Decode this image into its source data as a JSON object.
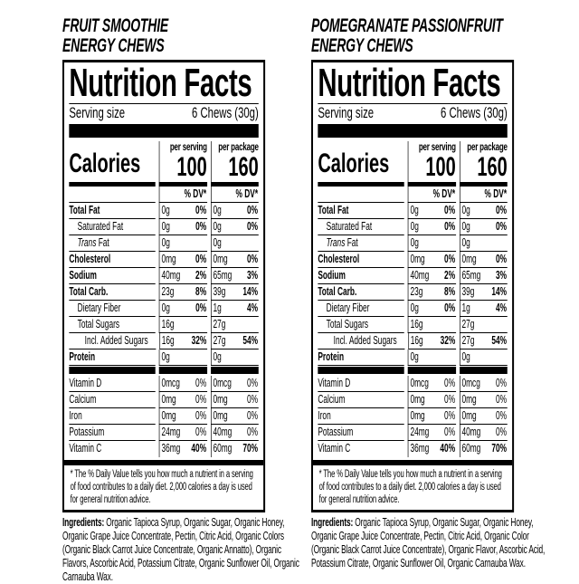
{
  "panels": [
    {
      "title_line1": "FRUIT SMOOTHIE",
      "title_line2": "ENERGY CHEWS",
      "heading": "Nutrition Facts",
      "serving_label": "Serving size",
      "serving_value": "6 Chews (30g)",
      "calories_label": "Calories",
      "per_serving_label": "per serving",
      "per_serving_calories": "100",
      "per_package_label": "per package",
      "per_package_calories": "160",
      "dv_header": "% DV*",
      "nutrients": [
        {
          "label": "Total Fat",
          "bold": true,
          "indent": 0,
          "s_amt": "0g",
          "s_dv": "0%",
          "p_amt": "0g",
          "p_dv": "0%"
        },
        {
          "label": "Saturated Fat",
          "bold": false,
          "indent": 1,
          "s_amt": "0g",
          "s_dv": "0%",
          "p_amt": "0g",
          "p_dv": "0%"
        },
        {
          "label_italic": "Trans",
          "label": " Fat",
          "bold": false,
          "indent": 1,
          "s_amt": "0g",
          "s_dv": "",
          "p_amt": "0g",
          "p_dv": ""
        },
        {
          "label": "Cholesterol",
          "bold": true,
          "indent": 0,
          "s_amt": "0mg",
          "s_dv": "0%",
          "p_amt": "0mg",
          "p_dv": "0%"
        },
        {
          "label": "Sodium",
          "bold": true,
          "indent": 0,
          "s_amt": "40mg",
          "s_dv": "2%",
          "p_amt": "65mg",
          "p_dv": "3%"
        },
        {
          "label": "Total Carb.",
          "bold": true,
          "indent": 0,
          "s_amt": "23g",
          "s_dv": "8%",
          "p_amt": "39g",
          "p_dv": "14%"
        },
        {
          "label": "Dietary Fiber",
          "bold": false,
          "indent": 1,
          "s_amt": "0g",
          "s_dv": "0%",
          "p_amt": "1g",
          "p_dv": "4%"
        },
        {
          "label": "Total Sugars",
          "bold": false,
          "indent": 1,
          "s_amt": "16g",
          "s_dv": "",
          "p_amt": "27g",
          "p_dv": ""
        },
        {
          "label": "Incl. Added Sugars",
          "bold": false,
          "indent": 2,
          "s_amt": "16g",
          "s_dv": "32%",
          "p_amt": "27g",
          "p_dv": "54%"
        },
        {
          "label": "Protein",
          "bold": true,
          "indent": 0,
          "s_amt": "0g",
          "s_dv": "",
          "p_amt": "0g",
          "p_dv": ""
        }
      ],
      "vitamins": [
        {
          "label": "Vitamin D",
          "s_amt": "0mcg",
          "s_dv": "0%",
          "p_amt": "0mcg",
          "p_dv": "0%",
          "bold_dv": false
        },
        {
          "label": "Calcium",
          "s_amt": "0mg",
          "s_dv": "0%",
          "p_amt": "0mg",
          "p_dv": "0%",
          "bold_dv": false
        },
        {
          "label": "Iron",
          "s_amt": "0mg",
          "s_dv": "0%",
          "p_amt": "0mg",
          "p_dv": "0%",
          "bold_dv": false
        },
        {
          "label": "Potassium",
          "s_amt": "24mg",
          "s_dv": "0%",
          "p_amt": "40mg",
          "p_dv": "0%",
          "bold_dv": false
        },
        {
          "label": "Vitamin C",
          "s_amt": "36mg",
          "s_dv": "40%",
          "p_amt": "60mg",
          "p_dv": "70%",
          "bold_dv": true
        }
      ],
      "footnote": "* The % Daily Value tells you how much a nutrient in a serving of food contributes to a daily diet. 2,000 calories a day is used for general nutrition advice.",
      "ingredients_label": "Ingredients:",
      "ingredients": " Organic Tapioca Syrup, Organic Sugar, Organic Honey, Organic Grape Juice Concentrate, Pectin, Citric Acid, Organic Colors (Organic Black Carrot Juice Concentrate, Organic Annatto), Organic Flavors, Ascorbic Acid, Potassium Citrate, Organic Sunflower Oil, Organic Carnauba Wax."
    },
    {
      "title_line1": "POMEGRANATE PASSIONFRUIT",
      "title_line2": "ENERGY CHEWS",
      "heading": "Nutrition Facts",
      "serving_label": "Serving size",
      "serving_value": "6 Chews (30g)",
      "calories_label": "Calories",
      "per_serving_label": "per serving",
      "per_serving_calories": "100",
      "per_package_label": "per package",
      "per_package_calories": "160",
      "dv_header": "% DV*",
      "nutrients": [
        {
          "label": "Total Fat",
          "bold": true,
          "indent": 0,
          "s_amt": "0g",
          "s_dv": "0%",
          "p_amt": "0g",
          "p_dv": "0%"
        },
        {
          "label": "Saturated Fat",
          "bold": false,
          "indent": 1,
          "s_amt": "0g",
          "s_dv": "0%",
          "p_amt": "0g",
          "p_dv": "0%"
        },
        {
          "label_italic": "Trans",
          "label": " Fat",
          "bold": false,
          "indent": 1,
          "s_amt": "0g",
          "s_dv": "",
          "p_amt": "0g",
          "p_dv": ""
        },
        {
          "label": "Cholesterol",
          "bold": true,
          "indent": 0,
          "s_amt": "0mg",
          "s_dv": "0%",
          "p_amt": "0mg",
          "p_dv": "0%"
        },
        {
          "label": "Sodium",
          "bold": true,
          "indent": 0,
          "s_amt": "40mg",
          "s_dv": "2%",
          "p_amt": "65mg",
          "p_dv": "3%"
        },
        {
          "label": "Total Carb.",
          "bold": true,
          "indent": 0,
          "s_amt": "23g",
          "s_dv": "8%",
          "p_amt": "39g",
          "p_dv": "14%"
        },
        {
          "label": "Dietary Fiber",
          "bold": false,
          "indent": 1,
          "s_amt": "0g",
          "s_dv": "0%",
          "p_amt": "1g",
          "p_dv": "4%"
        },
        {
          "label": "Total Sugars",
          "bold": false,
          "indent": 1,
          "s_amt": "16g",
          "s_dv": "",
          "p_amt": "27g",
          "p_dv": ""
        },
        {
          "label": "Incl. Added Sugars",
          "bold": false,
          "indent": 2,
          "s_amt": "16g",
          "s_dv": "32%",
          "p_amt": "27g",
          "p_dv": "54%"
        },
        {
          "label": "Protein",
          "bold": true,
          "indent": 0,
          "s_amt": "0g",
          "s_dv": "",
          "p_amt": "0g",
          "p_dv": ""
        }
      ],
      "vitamins": [
        {
          "label": "Vitamin D",
          "s_amt": "0mcg",
          "s_dv": "0%",
          "p_amt": "0mcg",
          "p_dv": "0%",
          "bold_dv": false
        },
        {
          "label": "Calcium",
          "s_amt": "0mg",
          "s_dv": "0%",
          "p_amt": "0mg",
          "p_dv": "0%",
          "bold_dv": false
        },
        {
          "label": "Iron",
          "s_amt": "0mg",
          "s_dv": "0%",
          "p_amt": "0mg",
          "p_dv": "0%",
          "bold_dv": false
        },
        {
          "label": "Potassium",
          "s_amt": "24mg",
          "s_dv": "0%",
          "p_amt": "40mg",
          "p_dv": "0%",
          "bold_dv": false
        },
        {
          "label": "Vitamin C",
          "s_amt": "36mg",
          "s_dv": "40%",
          "p_amt": "60mg",
          "p_dv": "70%",
          "bold_dv": true
        }
      ],
      "footnote": "* The % Daily Value tells you how much a nutrient in a serving of food contributes to a daily diet. 2,000 calories a day is used for general nutrition advice.",
      "ingredients_label": "Ingredients:",
      "ingredients": " Organic Tapioca Syrup, Organic Sugar, Organic Honey, Organic Grape Juice Concentrate, Pectin, Citric Acid, Organic Color (Organic Black Carrot Juice Concentrate), Organic Flavor, Ascorbic Acid, Potassium Citrate, Organic Sunflower Oil, Organic Carnauba Wax."
    }
  ]
}
